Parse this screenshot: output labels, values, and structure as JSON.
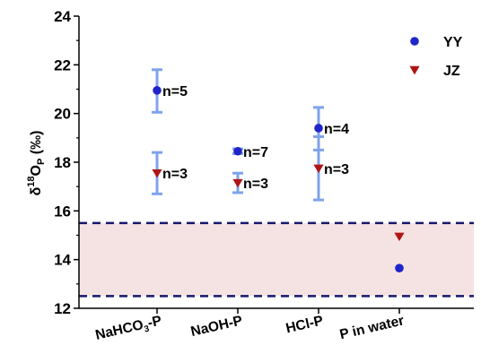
{
  "chart_data": {
    "type": "scatter",
    "ylabel_main": "δ",
    "ylabel_sup": "18",
    "ylabel_rest": "O",
    "ylabel_sub": "P",
    "ylabel_unit": " (‰)",
    "ylim": [
      12,
      24
    ],
    "yticks": [
      "12",
      "14",
      "16",
      "18",
      "20",
      "22",
      "24"
    ],
    "categories": [
      {
        "pre": "NaHCO",
        "sub": "3",
        "post": "-P"
      },
      {
        "pre": "NaOH-P",
        "sub": "",
        "post": ""
      },
      {
        "pre": "HCl-P",
        "sub": "",
        "post": ""
      },
      {
        "pre": "P in water",
        "sub": "",
        "post": ""
      }
    ],
    "series": [
      {
        "name": "YY",
        "marker": "circle",
        "color": "#1f25c9",
        "points": [
          {
            "x": 0,
            "y": 20.95,
            "err_low": 20.05,
            "err_high": 21.8,
            "label": "n=5"
          },
          {
            "x": 1,
            "y": 18.45,
            "err_low": 18.35,
            "err_high": 18.55,
            "label": "n=7"
          },
          {
            "x": 2,
            "y": 19.4,
            "err_low": 18.5,
            "err_high": 20.25,
            "label": "n=4"
          },
          {
            "x": 3,
            "y": 13.65,
            "label": ""
          }
        ]
      },
      {
        "name": "JZ",
        "marker": "triangle-down",
        "color": "#b01515",
        "points": [
          {
            "x": 0,
            "y": 17.55,
            "err_low": 16.7,
            "err_high": 18.4,
            "label": "n=3"
          },
          {
            "x": 1,
            "y": 17.15,
            "err_low": 16.75,
            "err_high": 17.55,
            "label": "n=3"
          },
          {
            "x": 2,
            "y": 17.75,
            "err_low": 16.45,
            "err_high": 19.05,
            "label": "n=3"
          },
          {
            "x": 3,
            "y": 14.95,
            "label": ""
          }
        ]
      }
    ],
    "band": {
      "y_low": 12.5,
      "y_high": 15.5,
      "fill": "#f5e3e3",
      "line_color": "#15186b"
    },
    "errorbar_color": "#7fa3ea",
    "legend_position": "top-right",
    "grid": false
  }
}
